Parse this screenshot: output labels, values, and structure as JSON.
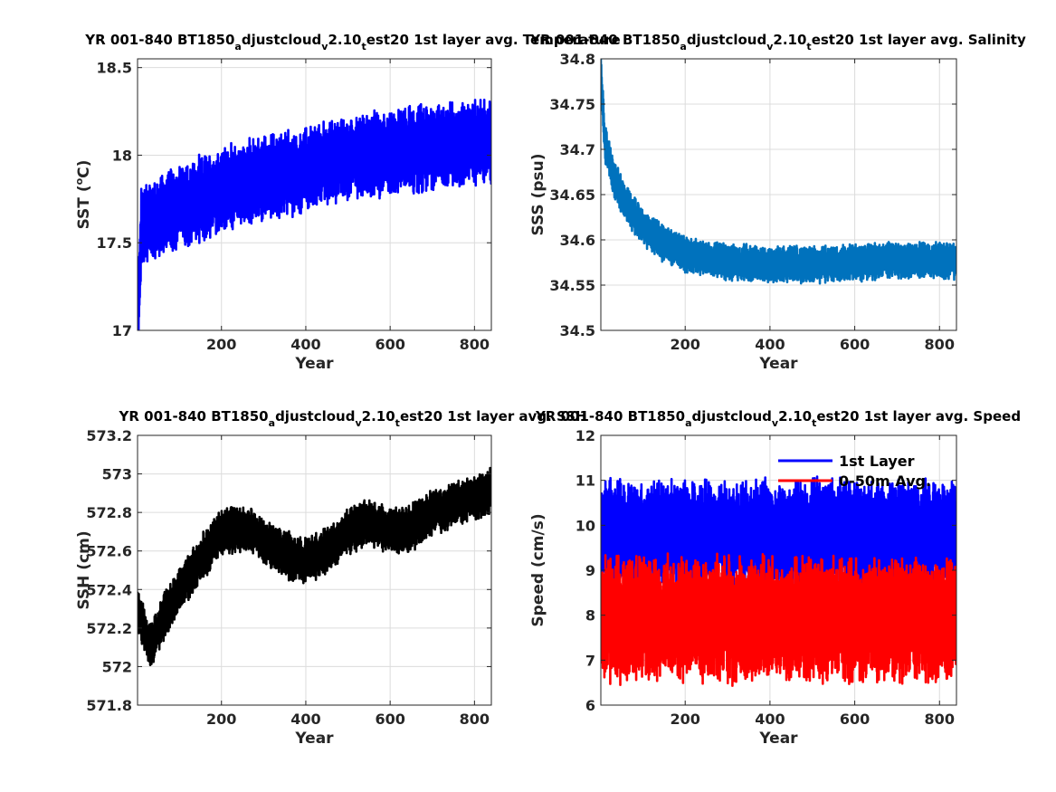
{
  "chart_data": [
    {
      "type": "line",
      "title": "YR 001-840 BT1850_adjustcloud_v2.10_test20 1st layer avg. Temperature",
      "xlabel": "Year",
      "ylabel": "SST (oC)",
      "xlim": [
        1,
        840
      ],
      "ylim": [
        17,
        18.55
      ],
      "xticks": [
        200,
        400,
        600,
        800
      ],
      "yticks": [
        17,
        17.5,
        18,
        18.5
      ],
      "grid": true,
      "series": [
        {
          "color": "#0000ff",
          "trend": [
            [
              1,
              17.05
            ],
            [
              10,
              17.6
            ],
            [
              100,
              17.7
            ],
            [
              200,
              17.8
            ],
            [
              300,
              17.87
            ],
            [
              400,
              17.92
            ],
            [
              500,
              17.98
            ],
            [
              600,
              18.02
            ],
            [
              700,
              18.05
            ],
            [
              840,
              18.08
            ]
          ],
          "noise_amplitude": 0.26
        }
      ]
    },
    {
      "type": "line",
      "title": "YR 001-840 BT1850_adjustcloud_v2.10_test20 1st layer avg. Salinity",
      "xlabel": "Year",
      "ylabel": "SSS (psu)",
      "xlim": [
        1,
        840
      ],
      "ylim": [
        34.5,
        34.8
      ],
      "xticks": [
        200,
        400,
        600,
        800
      ],
      "yticks": [
        34.5,
        34.55,
        34.6,
        34.65,
        34.7,
        34.75,
        34.8
      ],
      "grid": true,
      "series": [
        {
          "color": "#0072bd",
          "trend": [
            [
              1,
              34.785
            ],
            [
              10,
              34.71
            ],
            [
              30,
              34.67
            ],
            [
              60,
              34.64
            ],
            [
              100,
              34.615
            ],
            [
              150,
              34.595
            ],
            [
              200,
              34.585
            ],
            [
              300,
              34.575
            ],
            [
              400,
              34.573
            ],
            [
              500,
              34.573
            ],
            [
              600,
              34.575
            ],
            [
              700,
              34.578
            ],
            [
              840,
              34.577
            ]
          ],
          "noise_amplitude": 0.022
        }
      ]
    },
    {
      "type": "line",
      "title": "YR 001-840 BT1850_adjustcloud_v2.10_test20 1st layer avg. SSH",
      "xlabel": "Year",
      "ylabel": "SSH (cm)",
      "xlim": [
        1,
        840
      ],
      "ylim": [
        571.8,
        573.2
      ],
      "xticks": [
        200,
        400,
        600,
        800
      ],
      "yticks": [
        571.8,
        572,
        572.2,
        572.4,
        572.6,
        572.8,
        573,
        573.2
      ],
      "grid": true,
      "series": [
        {
          "color": "#000000",
          "trend": [
            [
              1,
              572.3
            ],
            [
              30,
              572.1
            ],
            [
              60,
              572.25
            ],
            [
              100,
              572.4
            ],
            [
              150,
              572.55
            ],
            [
              200,
              572.7
            ],
            [
              260,
              572.72
            ],
            [
              300,
              572.65
            ],
            [
              350,
              572.58
            ],
            [
              400,
              572.55
            ],
            [
              450,
              572.6
            ],
            [
              500,
              572.7
            ],
            [
              550,
              572.75
            ],
            [
              600,
              572.7
            ],
            [
              650,
              572.72
            ],
            [
              700,
              572.8
            ],
            [
              760,
              572.85
            ],
            [
              800,
              572.88
            ],
            [
              840,
              572.92
            ]
          ],
          "noise_amplitude": 0.13
        }
      ]
    },
    {
      "type": "line",
      "title": "YR 001-840 BT1850_adjustcloud_v2.10_test20 1st layer avg. Speed",
      "xlabel": "Year",
      "ylabel": "Speed (cm/s)",
      "xlim": [
        1,
        840
      ],
      "ylim": [
        6,
        12
      ],
      "xticks": [
        200,
        400,
        600,
        800
      ],
      "yticks": [
        6,
        7,
        8,
        9,
        10,
        11,
        12
      ],
      "grid": true,
      "legend": "top-right",
      "series": [
        {
          "name": "1st Layer",
          "color": "#0000ff",
          "trend": [
            [
              1,
              9.8
            ],
            [
              840,
              9.8
            ]
          ],
          "noise_amplitude": 1.3
        },
        {
          "name": "0-50m Avg.",
          "color": "#ff0000",
          "trend": [
            [
              1,
              7.9
            ],
            [
              840,
              7.9
            ]
          ],
          "noise_amplitude": 1.5
        }
      ]
    }
  ]
}
